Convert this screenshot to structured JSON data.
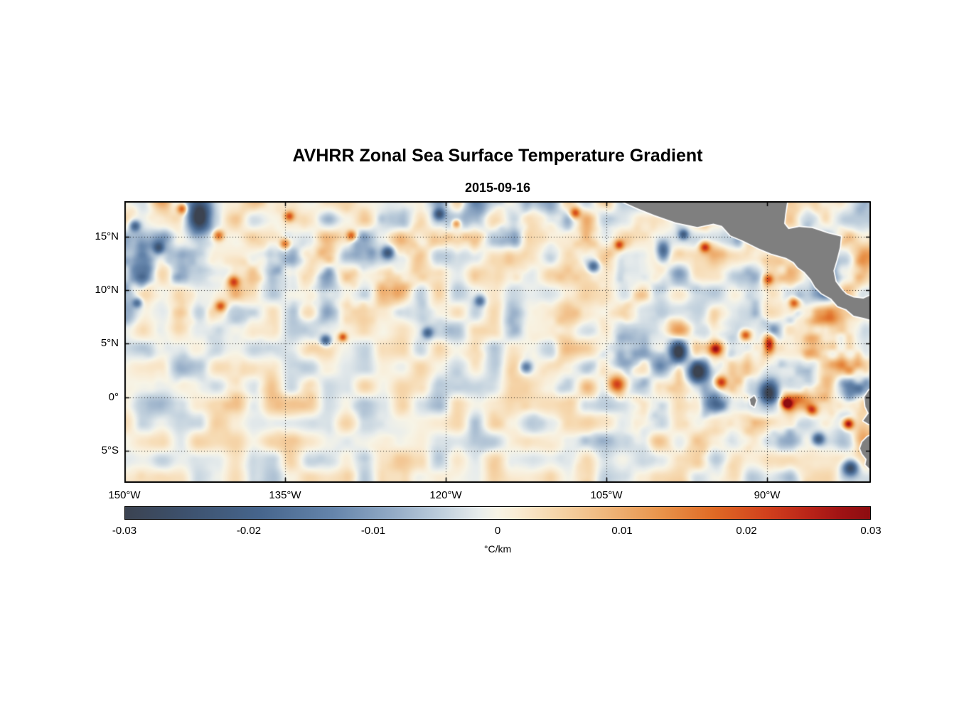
{
  "figure": {
    "title": "AVHRR Zonal Sea Surface Temperature Gradient",
    "subtitle": "2015-09-16"
  },
  "chart_data": {
    "type": "heatmap",
    "title": "AVHRR Zonal Sea Surface Temperature Gradient",
    "subtitle_date": "2015-09-16",
    "units": "°C/km",
    "x_axis": {
      "tick_labels": [
        "150°W",
        "135°W",
        "120°W",
        "105°W",
        "90°W"
      ],
      "tick_lons": [
        -150,
        -135,
        -120,
        -105,
        -90
      ],
      "range_lon": [
        -150,
        -80.3
      ],
      "grid": "dotted"
    },
    "y_axis": {
      "tick_labels": [
        "15°N",
        "10°N",
        "5°N",
        "0°",
        "5°S"
      ],
      "tick_lats": [
        15,
        10,
        5,
        0,
        -5
      ],
      "range_lat": [
        18.3,
        -8.0
      ],
      "grid": "dotted"
    },
    "colorbar": {
      "unit_label": "°C/km",
      "tick_labels": [
        "-0.03",
        "-0.02",
        "-0.01",
        "0",
        "0.01",
        "0.02",
        "0.03"
      ],
      "tick_values": [
        -0.03,
        -0.02,
        -0.01,
        0,
        0.01,
        0.02,
        0.03
      ],
      "range": [
        -0.03,
        0.03
      ],
      "stops": [
        {
          "t": 0.0,
          "color": "#3b4351"
        },
        {
          "t": 0.08,
          "color": "#3d516d"
        },
        {
          "t": 0.18,
          "color": "#46658c"
        },
        {
          "t": 0.28,
          "color": "#6585ab"
        },
        {
          "t": 0.36,
          "color": "#93abc6"
        },
        {
          "t": 0.43,
          "color": "#c3d2de"
        },
        {
          "t": 0.475,
          "color": "#e7ecec"
        },
        {
          "t": 0.5,
          "color": "#f7f4e6"
        },
        {
          "t": 0.525,
          "color": "#f9ecd5"
        },
        {
          "t": 0.57,
          "color": "#f6d9b0"
        },
        {
          "t": 0.64,
          "color": "#f0b97f"
        },
        {
          "t": 0.72,
          "color": "#e8934a"
        },
        {
          "t": 0.79,
          "color": "#df6a25"
        },
        {
          "t": 0.86,
          "color": "#d2411d"
        },
        {
          "t": 0.92,
          "color": "#b82318"
        },
        {
          "t": 0.96,
          "color": "#a01314"
        },
        {
          "t": 1.0,
          "color": "#8d0c10"
        }
      ]
    },
    "field": {
      "seed": 20150916,
      "noise_amplitude": 0.034,
      "background_amplitude": 0.005,
      "features": [
        {
          "lon": -143.0,
          "lat": 16.9,
          "r": 1.1,
          "ry": 1.7,
          "v": -0.026
        },
        {
          "lon": -144.6,
          "lat": 17.6,
          "r": 0.5,
          "v": 0.021
        },
        {
          "lon": -141.2,
          "lat": 15.1,
          "r": 0.5,
          "v": 0.018
        },
        {
          "lon": -146.8,
          "lat": 13.9,
          "r": 0.5,
          "v": -0.016
        },
        {
          "lon": -149.0,
          "lat": 16.0,
          "r": 0.5,
          "v": -0.018
        },
        {
          "lon": -148.8,
          "lat": 8.8,
          "r": 0.45,
          "v": -0.016
        },
        {
          "lon": -135.0,
          "lat": 14.3,
          "r": 0.5,
          "v": 0.02
        },
        {
          "lon": -134.6,
          "lat": 16.9,
          "r": 0.45,
          "v": 0.017
        },
        {
          "lon": -139.8,
          "lat": 10.8,
          "r": 0.55,
          "v": 0.02
        },
        {
          "lon": -141.0,
          "lat": 8.5,
          "r": 0.5,
          "v": 0.018
        },
        {
          "lon": -131.2,
          "lat": 5.3,
          "r": 0.5,
          "v": -0.021
        },
        {
          "lon": -129.6,
          "lat": 5.6,
          "r": 0.4,
          "v": 0.02
        },
        {
          "lon": -125.4,
          "lat": 13.5,
          "r": 0.55,
          "v": -0.02
        },
        {
          "lon": -128.8,
          "lat": 15.1,
          "r": 0.45,
          "v": 0.017
        },
        {
          "lon": -120.6,
          "lat": 17.1,
          "r": 0.5,
          "v": -0.018
        },
        {
          "lon": -119.0,
          "lat": 16.2,
          "r": 0.4,
          "v": 0.016
        },
        {
          "lon": -121.7,
          "lat": 6.0,
          "r": 0.5,
          "v": -0.017
        },
        {
          "lon": -116.8,
          "lat": 9.0,
          "r": 0.5,
          "v": -0.016
        },
        {
          "lon": -112.5,
          "lat": 2.8,
          "r": 0.55,
          "v": -0.016
        },
        {
          "lon": -107.9,
          "lat": 17.2,
          "r": 0.5,
          "v": 0.021
        },
        {
          "lon": -106.2,
          "lat": 12.2,
          "r": 0.55,
          "v": -0.02
        },
        {
          "lon": -103.8,
          "lat": 14.2,
          "r": 0.45,
          "v": 0.018
        },
        {
          "lon": -99.7,
          "lat": 13.6,
          "r": 0.6,
          "ry": 0.9,
          "v": -0.023
        },
        {
          "lon": -97.8,
          "lat": 15.2,
          "r": 0.45,
          "v": -0.019
        },
        {
          "lon": -95.8,
          "lat": 14.0,
          "r": 0.5,
          "v": 0.022
        },
        {
          "lon": -104.0,
          "lat": 1.2,
          "r": 0.8,
          "v": 0.023
        },
        {
          "lon": -98.3,
          "lat": 4.2,
          "r": 0.8,
          "ry": 1.1,
          "v": -0.027
        },
        {
          "lon": -96.5,
          "lat": 2.3,
          "r": 0.9,
          "v": -0.026
        },
        {
          "lon": -94.8,
          "lat": 4.5,
          "r": 0.6,
          "v": 0.026
        },
        {
          "lon": -94.3,
          "lat": 1.4,
          "r": 0.55,
          "v": 0.025
        },
        {
          "lon": -92.0,
          "lat": 5.8,
          "r": 0.5,
          "v": 0.022
        },
        {
          "lon": -89.8,
          "lat": 5.0,
          "r": 0.5,
          "ry": 0.9,
          "v": 0.026
        },
        {
          "lon": -89.8,
          "lat": 0.4,
          "r": 0.8,
          "ry": 1.0,
          "v": -0.028
        },
        {
          "lon": -88.2,
          "lat": -0.6,
          "r": 0.5,
          "v": 0.026
        },
        {
          "lon": -87.5,
          "lat": 8.8,
          "r": 0.5,
          "v": 0.021
        },
        {
          "lon": -89.9,
          "lat": 11.0,
          "r": 0.5,
          "v": 0.02
        },
        {
          "lon": -85.8,
          "lat": -1.2,
          "r": 0.5,
          "v": 0.02
        },
        {
          "lon": -85.2,
          "lat": -3.9,
          "r": 0.55,
          "v": -0.02
        },
        {
          "lon": -82.4,
          "lat": -2.5,
          "r": 0.5,
          "v": 0.03
        },
        {
          "lon": -82.2,
          "lat": -6.6,
          "r": 0.7,
          "v": -0.028
        }
      ]
    },
    "land": {
      "color": "#7f7f7f",
      "coast_rim_color": "#ffffff",
      "polygons": [
        {
          "name": "central-america",
          "points": [
            [
              -103.8,
              18.4
            ],
            [
              -102.0,
              17.6
            ],
            [
              -100.5,
              17.0
            ],
            [
              -98.5,
              16.3
            ],
            [
              -96.5,
              15.9
            ],
            [
              -95.0,
              16.2
            ],
            [
              -94.2,
              16.0
            ],
            [
              -93.4,
              15.1
            ],
            [
              -92.2,
              14.6
            ],
            [
              -90.8,
              13.9
            ],
            [
              -89.6,
              13.4
            ],
            [
              -88.2,
              13.0
            ],
            [
              -87.5,
              12.6
            ],
            [
              -87.1,
              12.1
            ],
            [
              -86.5,
              11.7
            ],
            [
              -85.9,
              11.0
            ],
            [
              -85.5,
              10.3
            ],
            [
              -84.9,
              9.7
            ],
            [
              -84.0,
              9.2
            ],
            [
              -83.4,
              8.5
            ],
            [
              -82.6,
              8.2
            ],
            [
              -81.9,
              7.6
            ],
            [
              -81.0,
              7.4
            ],
            [
              -79.9,
              7.1
            ],
            [
              -79.9,
              9.7
            ],
            [
              -81.0,
              9.2
            ],
            [
              -81.9,
              9.3
            ],
            [
              -82.6,
              9.6
            ],
            [
              -83.0,
              10.0
            ],
            [
              -83.6,
              10.8
            ],
            [
              -83.8,
              11.8
            ],
            [
              -83.5,
              12.8
            ],
            [
              -83.2,
              14.0
            ],
            [
              -83.1,
              15.0
            ],
            [
              -84.3,
              15.3
            ],
            [
              -85.8,
              15.8
            ],
            [
              -87.0,
              15.9
            ],
            [
              -88.0,
              15.7
            ],
            [
              -88.4,
              16.2
            ],
            [
              -88.3,
              17.1
            ],
            [
              -88.1,
              18.4
            ]
          ]
        },
        {
          "name": "ecuador",
          "points": [
            [
              -79.9,
              1.2
            ],
            [
              -80.5,
              0.6
            ],
            [
              -80.9,
              0.0
            ],
            [
              -80.8,
              -0.9
            ],
            [
              -80.5,
              -1.5
            ],
            [
              -81.0,
              -2.2
            ],
            [
              -80.5,
              -2.5
            ],
            [
              -79.9,
              -2.7
            ]
          ]
        },
        {
          "name": "peru",
          "points": [
            [
              -79.9,
              -3.4
            ],
            [
              -80.6,
              -3.7
            ],
            [
              -81.1,
              -4.2
            ],
            [
              -81.3,
              -4.8
            ],
            [
              -81.1,
              -5.3
            ],
            [
              -80.7,
              -5.8
            ],
            [
              -80.8,
              -6.3
            ],
            [
              -80.2,
              -6.9
            ],
            [
              -79.9,
              -7.3
            ],
            [
              -79.9,
              -8.3
            ]
          ]
        },
        {
          "name": "galapagos-island",
          "points": [
            [
              -91.6,
              -0.2
            ],
            [
              -91.2,
              0.1
            ],
            [
              -91.0,
              -0.3
            ],
            [
              -91.2,
              -0.9
            ],
            [
              -91.5,
              -0.7
            ]
          ]
        }
      ]
    }
  }
}
